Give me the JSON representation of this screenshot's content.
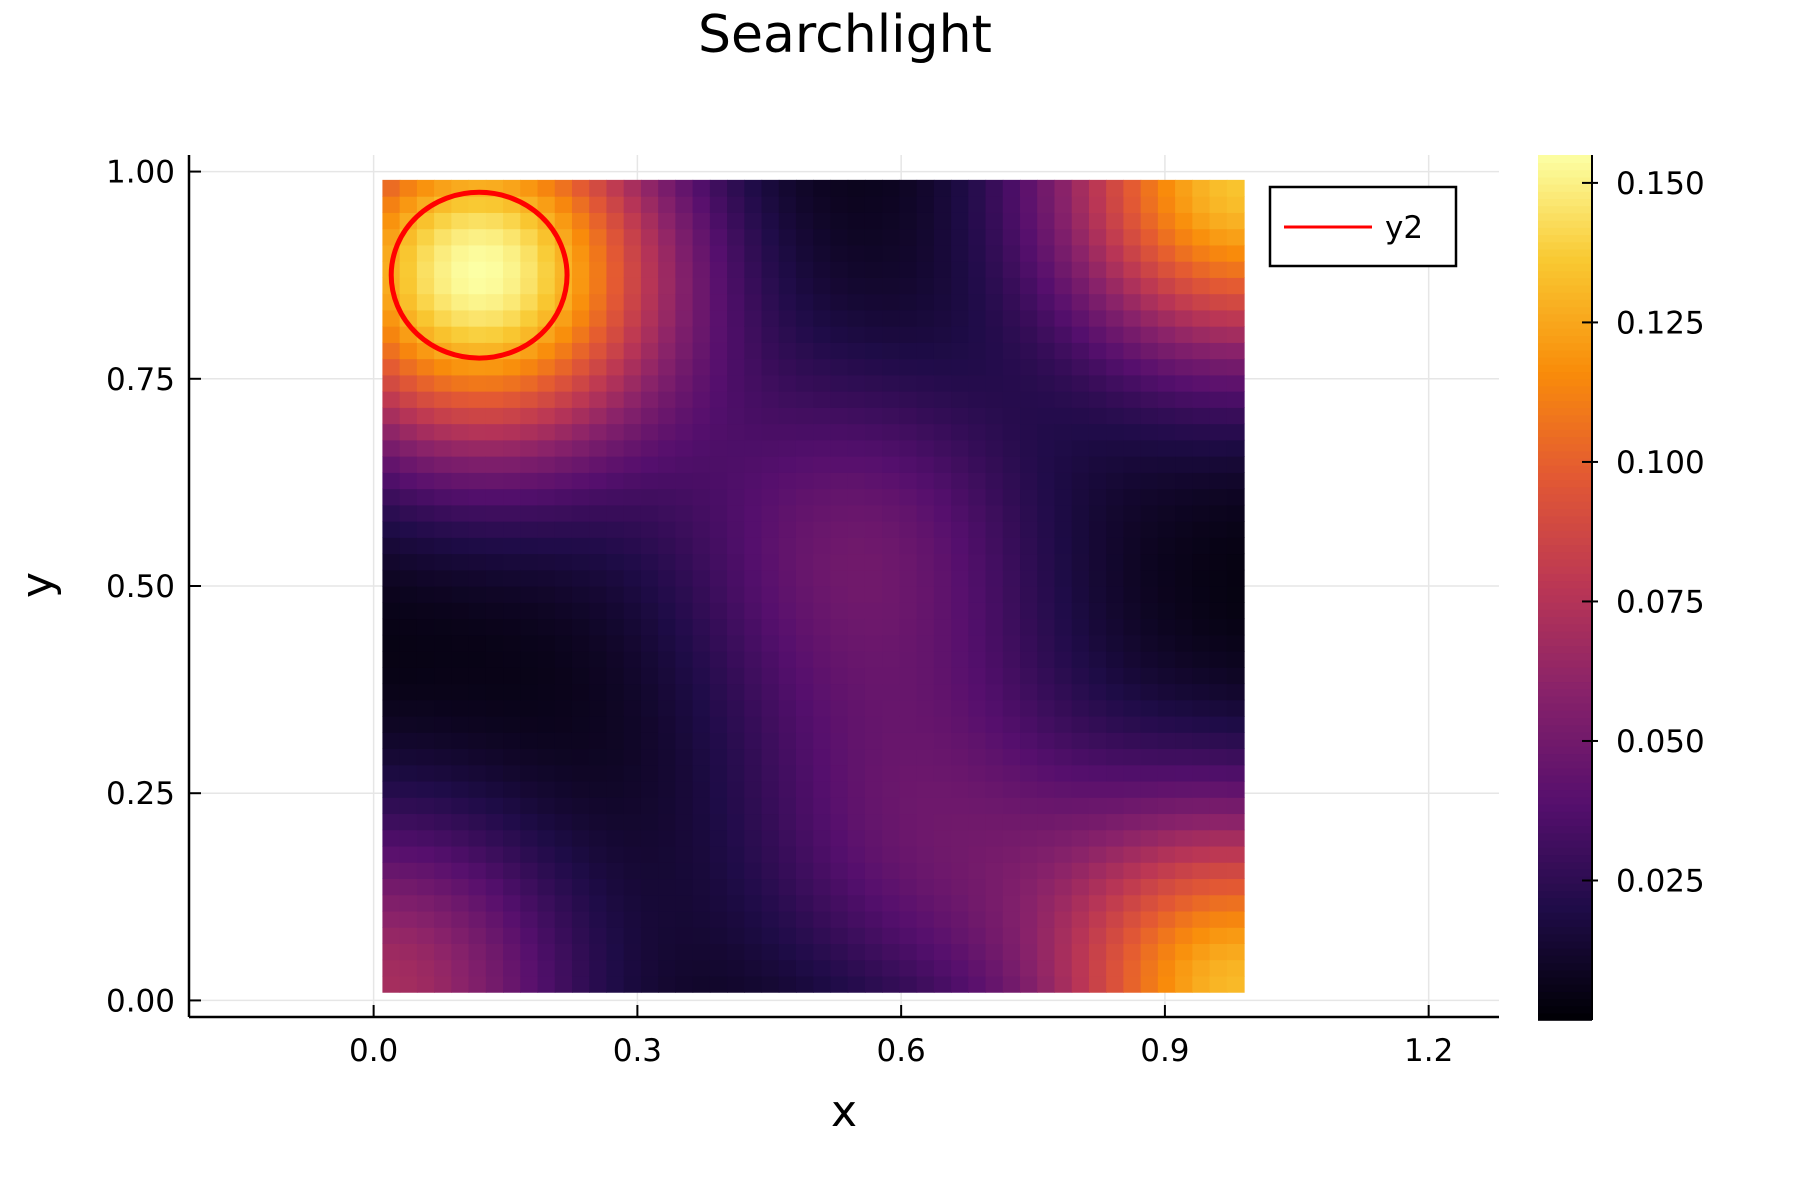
{
  "chart_data": {
    "type": "heatmap",
    "title": "Searchlight",
    "xlabel": "x",
    "ylabel": "y",
    "xlim": [
      -0.21,
      1.28
    ],
    "ylim": [
      -0.02,
      1.02
    ],
    "x_ticks": [
      0.0,
      0.3,
      0.6,
      0.9,
      1.2
    ],
    "x_tick_labels": [
      "0.0",
      "0.3",
      "0.6",
      "0.9",
      "1.2"
    ],
    "y_ticks": [
      0.0,
      0.25,
      0.5,
      0.75,
      1.0
    ],
    "y_tick_labels": [
      "0.00",
      "0.25",
      "0.50",
      "0.75",
      "1.00"
    ],
    "grid": true,
    "heatmap": {
      "x_range": [
        0.01,
        0.99
      ],
      "y_range": [
        0.01,
        0.99
      ],
      "resolution": 50,
      "colormap": "inferno",
      "clim": [
        0.0,
        0.155
      ],
      "regions": [
        {
          "x": 0.12,
          "y": 0.88,
          "peak": 0.155
        },
        {
          "x": 0.99,
          "y": 0.99,
          "peak": 0.135
        },
        {
          "x": 0.99,
          "y": 0.01,
          "peak": 0.13
        },
        {
          "x": 0.01,
          "y": 0.01,
          "peak": 0.07
        },
        {
          "x": 0.55,
          "y": 0.55,
          "peak": 0.045
        },
        {
          "x": 0.62,
          "y": 0.2,
          "peak": 0.04
        }
      ]
    },
    "colorbar": {
      "ticks": [
        0.025,
        0.05,
        0.075,
        0.1,
        0.125,
        0.15
      ],
      "tick_labels": [
        "0.025",
        "0.050",
        "0.075",
        "0.100",
        "0.125",
        "0.150"
      ]
    },
    "series": [
      {
        "name": "y2",
        "type": "circle",
        "center": [
          0.12,
          0.875
        ],
        "radius": 0.1,
        "color": "#ff0000"
      }
    ],
    "legend": {
      "position": "top-right",
      "entries": [
        "y2"
      ]
    }
  },
  "colors": {
    "axis": "#000000",
    "grid": "#e6e6e6",
    "series_line": "#ff0000",
    "background": "#ffffff"
  }
}
